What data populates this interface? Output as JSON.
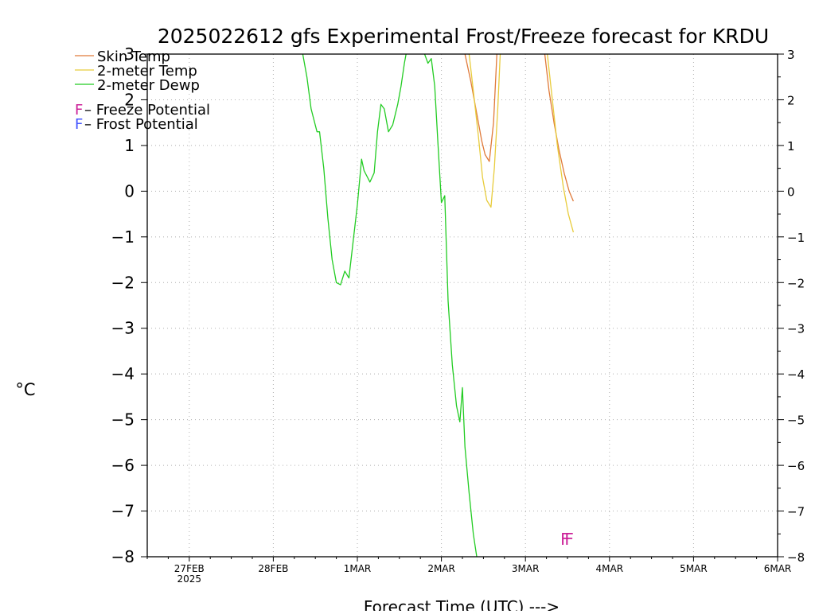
{
  "chart_data": {
    "type": "line",
    "title": "2025022612 gfs Experimental Frost/Freeze forecast for KRDU",
    "xlabel": "Forecast Time (UTC) --->",
    "ylabel": "°C",
    "ylim": [
      -8,
      3
    ],
    "xlim": [
      0,
      7.5
    ],
    "yticks": [
      3,
      2,
      1,
      0,
      -1,
      -2,
      -3,
      -4,
      -5,
      -6,
      -7,
      -8
    ],
    "ytick_labels": [
      "3",
      "2",
      "1",
      "0",
      "−1",
      "−2",
      "−3",
      "−4",
      "−5",
      "−6",
      "−7",
      "−8"
    ],
    "xticks": [
      {
        "x": 0.5,
        "label": "27FEB",
        "sublabel": "2025"
      },
      {
        "x": 1.5,
        "label": "28FEB",
        "sublabel": ""
      },
      {
        "x": 2.5,
        "label": "1MAR",
        "sublabel": ""
      },
      {
        "x": 3.5,
        "label": "2MAR",
        "sublabel": ""
      },
      {
        "x": 4.5,
        "label": "3MAR",
        "sublabel": ""
      },
      {
        "x": 5.5,
        "label": "4MAR",
        "sublabel": ""
      },
      {
        "x": 6.5,
        "label": "5MAR",
        "sublabel": ""
      },
      {
        "x": 7.5,
        "label": "6MAR",
        "sublabel": ""
      }
    ],
    "grid": true,
    "legend_position": "top-left",
    "series": [
      {
        "name": "Skin Temp",
        "color": "#e07a3a",
        "segments": [
          [
            [
              3.78,
              3.0
            ],
            [
              3.85,
              2.4
            ],
            [
              3.92,
              1.7
            ],
            [
              3.98,
              1.1
            ],
            [
              4.02,
              0.8
            ],
            [
              4.07,
              0.65
            ],
            [
              4.12,
              1.5
            ],
            [
              4.16,
              3.0
            ]
          ],
          [
            [
              4.73,
              3.0
            ],
            [
              4.78,
              2.2
            ],
            [
              4.84,
              1.5
            ],
            [
              4.9,
              0.9
            ],
            [
              4.96,
              0.4
            ],
            [
              5.02,
              0.0
            ],
            [
              5.07,
              -0.22
            ]
          ]
        ]
      },
      {
        "name": "2-meter Temp",
        "color": "#e8cc3c",
        "segments": [
          [
            [
              3.83,
              3.0
            ],
            [
              3.88,
              2.2
            ],
            [
              3.94,
              1.2
            ],
            [
              3.99,
              0.3
            ],
            [
              4.04,
              -0.2
            ],
            [
              4.09,
              -0.35
            ],
            [
              4.13,
              0.5
            ],
            [
              4.17,
              1.8
            ],
            [
              4.2,
              3.0
            ]
          ],
          [
            [
              4.76,
              3.0
            ],
            [
              4.82,
              2.0
            ],
            [
              4.88,
              1.0
            ],
            [
              4.95,
              0.1
            ],
            [
              5.01,
              -0.5
            ],
            [
              5.07,
              -0.9
            ]
          ]
        ]
      },
      {
        "name": "2-meter Dewp",
        "color": "#22cc22",
        "segments": [
          [
            [
              1.85,
              3.0
            ],
            [
              1.9,
              2.5
            ],
            [
              1.95,
              1.8
            ],
            [
              2.02,
              1.3
            ],
            [
              2.05,
              1.3
            ],
            [
              2.1,
              0.5
            ],
            [
              2.15,
              -0.6
            ],
            [
              2.2,
              -1.5
            ],
            [
              2.25,
              -2.0
            ],
            [
              2.3,
              -2.05
            ],
            [
              2.35,
              -1.75
            ],
            [
              2.4,
              -1.9
            ],
            [
              2.45,
              -1.1
            ],
            [
              2.5,
              -0.3
            ],
            [
              2.55,
              0.7
            ],
            [
              2.58,
              0.45
            ],
            [
              2.65,
              0.2
            ],
            [
              2.7,
              0.4
            ],
            [
              2.74,
              1.3
            ],
            [
              2.78,
              1.9
            ],
            [
              2.82,
              1.8
            ],
            [
              2.87,
              1.3
            ],
            [
              2.92,
              1.45
            ],
            [
              2.98,
              1.9
            ],
            [
              3.02,
              2.3
            ],
            [
              3.06,
              2.8
            ],
            [
              3.08,
              3.0
            ]
          ],
          [
            [
              3.3,
              3.0
            ],
            [
              3.34,
              2.8
            ],
            [
              3.38,
              2.9
            ],
            [
              3.42,
              2.3
            ],
            [
              3.46,
              1.0
            ],
            [
              3.5,
              -0.25
            ],
            [
              3.54,
              -0.1
            ],
            [
              3.58,
              -2.4
            ],
            [
              3.63,
              -3.8
            ],
            [
              3.68,
              -4.7
            ],
            [
              3.72,
              -5.05
            ],
            [
              3.75,
              -4.3
            ],
            [
              3.78,
              -5.6
            ],
            [
              3.83,
              -6.6
            ],
            [
              3.88,
              -7.5
            ],
            [
              3.92,
              -8.0
            ]
          ]
        ]
      }
    ],
    "legend_items": [
      "Skin Temp",
      "2-meter Temp",
      "2-meter Dewp"
    ],
    "annotations": [
      {
        "text": "F",
        "x": 5.02,
        "y": -7.6,
        "color": "#cc2299"
      },
      {
        "text": "F",
        "x": 4.97,
        "y": -7.6,
        "color": "#cc2299"
      }
    ],
    "potential_legend": [
      {
        "symbol": "F",
        "label": " –  Freeze Potential",
        "color": "#cc2299"
      },
      {
        "symbol": "F",
        "label": " –  Frost Potential",
        "color": "#4455ff"
      }
    ]
  }
}
